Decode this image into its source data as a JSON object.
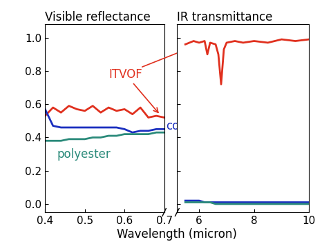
{
  "x_label": "Wavelength (micron)",
  "chart_data": [
    {
      "type": "line",
      "title": "Visible reflectance",
      "xlim": [
        0.4,
        0.7
      ],
      "xticks": [
        0.4,
        0.5,
        0.6,
        0.7
      ],
      "ylim": [
        -0.05,
        1.08
      ],
      "yticks": [
        {
          "value": 0,
          "label": "0.0"
        },
        {
          "value": 0.2,
          "label": "0.2"
        },
        {
          "value": 0.4,
          "label": "0.4"
        },
        {
          "value": 0.6,
          "label": "0.6"
        },
        {
          "value": 0.8,
          "label": "0.8"
        },
        {
          "value": 1,
          "label": "1.0"
        }
      ],
      "x": [
        0.4,
        0.42,
        0.44,
        0.46,
        0.48,
        0.5,
        0.52,
        0.54,
        0.56,
        0.58,
        0.6,
        0.62,
        0.64,
        0.66,
        0.68,
        0.7
      ],
      "series": [
        {
          "name": "ITVOF",
          "color": "#e0301e",
          "values": [
            0.53,
            0.58,
            0.55,
            0.59,
            0.57,
            0.56,
            0.59,
            0.55,
            0.58,
            0.56,
            0.57,
            0.54,
            0.58,
            0.52,
            0.53,
            0.52
          ]
        },
        {
          "name": "cotton",
          "color": "#1a2fbf",
          "values": [
            0.57,
            0.47,
            0.46,
            0.46,
            0.46,
            0.46,
            0.46,
            0.46,
            0.46,
            0.46,
            0.45,
            0.43,
            0.44,
            0.44,
            0.45,
            0.45
          ]
        },
        {
          "name": "polyester",
          "color": "#2a8a7a",
          "values": [
            0.38,
            0.38,
            0.38,
            0.39,
            0.39,
            0.39,
            0.4,
            0.4,
            0.41,
            0.41,
            0.42,
            0.42,
            0.42,
            0.42,
            0.43,
            0.43
          ]
        }
      ]
    },
    {
      "type": "line",
      "title": "IR transmittance",
      "tick_labels": "x",
      "xlim": [
        5.2,
        10
      ],
      "xticks": [
        6,
        8,
        10
      ],
      "ylim": [
        -0.05,
        1.08
      ],
      "yticks": [
        0,
        0.2,
        0.4,
        0.6,
        0.8,
        1
      ],
      "x": [
        5.5,
        5.8,
        6.0,
        6.2,
        6.3,
        6.4,
        6.6,
        6.7,
        6.8,
        6.9,
        7.0,
        7.3,
        7.6,
        8.0,
        8.5,
        9.0,
        9.5,
        10.0
      ],
      "series": [
        {
          "name": "ITVOF",
          "color": "#e0301e",
          "values": [
            0.96,
            0.98,
            0.97,
            0.98,
            0.9,
            0.97,
            0.96,
            0.9,
            0.72,
            0.93,
            0.97,
            0.98,
            0.97,
            0.98,
            0.97,
            0.99,
            0.98,
            0.99
          ]
        },
        {
          "name": "cotton",
          "color": "#1a2fbf",
          "values": [
            0.02,
            0.02,
            0.02,
            0.01,
            0.01,
            0.01,
            0.01,
            0.01,
            0.01,
            0.01,
            0.01,
            0.01,
            0.01,
            0.01,
            0.01,
            0.01,
            0.01,
            0.01
          ]
        },
        {
          "name": "polyester",
          "color": "#2a8a7a",
          "values": [
            0.01,
            0.01,
            0.01,
            0.01,
            0.01,
            0.01,
            0.0,
            0.0,
            0.0,
            0.0,
            0.0,
            0.0,
            0.0,
            0.0,
            0.0,
            0.0,
            0.0,
            0.0
          ]
        }
      ]
    }
  ]
}
